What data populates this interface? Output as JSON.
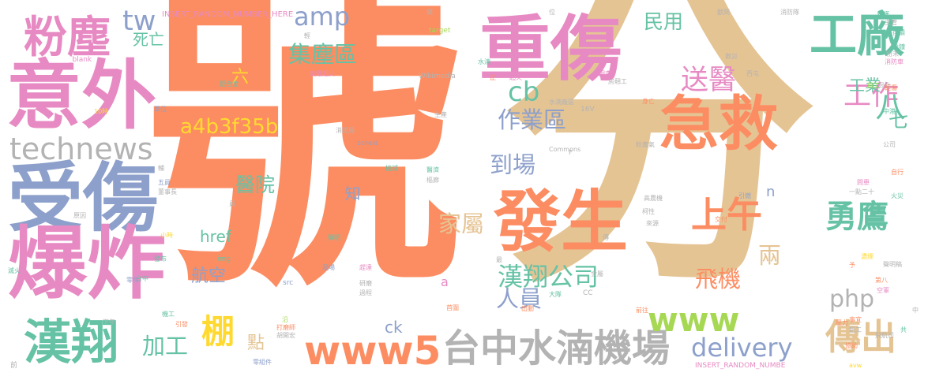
{
  "palette": {
    "orange": "#fc8d62",
    "tan": "#e5c494",
    "pink": "#e78ac3",
    "blue": "#8da0cb",
    "green": "#66c2a5",
    "lime": "#a6d854",
    "yellow": "#ffd92f",
    "gray": "#b3b3b3"
  },
  "words": [
    {
      "text": "號",
      "color": "orange"
    },
    {
      "text": "分",
      "color": "tan"
    },
    {
      "text": "重傷",
      "color": "pink"
    },
    {
      "text": "意外",
      "color": "pink"
    },
    {
      "text": "受傷",
      "color": "blue"
    },
    {
      "text": "爆炸",
      "color": "pink"
    },
    {
      "text": "發生",
      "color": "orange"
    },
    {
      "text": "急救",
      "color": "orange"
    },
    {
      "text": "工廠",
      "color": "green"
    },
    {
      "text": "粉塵",
      "color": "pink"
    },
    {
      "text": "technews",
      "color": "gray"
    },
    {
      "text": "台中水湳機場",
      "color": "gray"
    },
    {
      "text": "漢翔",
      "color": "green"
    },
    {
      "text": "www5",
      "color": "orange"
    },
    {
      "text": "傳出",
      "color": "tan"
    },
    {
      "text": "delivery",
      "color": "blue"
    },
    {
      "text": "漢翔公司",
      "color": "green"
    },
    {
      "text": "上午",
      "color": "orange"
    },
    {
      "text": "勇鷹",
      "color": "green"
    },
    {
      "text": "工作",
      "color": "pink"
    },
    {
      "text": "送醫",
      "color": "pink"
    },
    {
      "text": "amp",
      "color": "blue"
    },
    {
      "text": "tw",
      "color": "blue"
    },
    {
      "text": "cb",
      "color": "green"
    },
    {
      "text": "www",
      "color": "lime"
    },
    {
      "text": "php",
      "color": "gray"
    },
    {
      "text": "集塵區",
      "color": "green"
    },
    {
      "text": "作業區",
      "color": "blue"
    },
    {
      "text": "到場",
      "color": "blue"
    },
    {
      "text": "家屬",
      "color": "tan"
    },
    {
      "text": "飛機",
      "color": "orange"
    },
    {
      "text": "人員",
      "color": "blue"
    },
    {
      "text": "兩",
      "color": "tan"
    },
    {
      "text": "八",
      "color": "green"
    },
    {
      "text": "棚",
      "color": "yellow"
    },
    {
      "text": "加工",
      "color": "green"
    },
    {
      "text": "工業",
      "color": "green"
    },
    {
      "text": "民用",
      "color": "green"
    },
    {
      "text": "七",
      "color": "green"
    },
    {
      "text": "a4b3f35b",
      "color": "yellow"
    },
    {
      "text": "醫院",
      "color": "green"
    },
    {
      "text": "航空",
      "color": "blue"
    },
    {
      "text": "href",
      "color": "green"
    },
    {
      "text": "ck",
      "color": "blue"
    },
    {
      "text": "點",
      "color": "tan"
    },
    {
      "text": "死亡",
      "color": "green"
    },
    {
      "text": "六",
      "color": "yellow"
    },
    {
      "text": "知",
      "color": "blue"
    },
    {
      "text": "a",
      "color": "pink"
    },
    {
      "text": "n",
      "color": "blue"
    },
    {
      "text": "INSERT_RANDOM_NUMBER_HERE",
      "color": "pink"
    },
    {
      "text": "INSERT_RANDOM_NUMBE",
      "color": "pink"
    },
    {
      "text": "target",
      "color": "lime"
    },
    {
      "text": "_blank",
      "color": "pink"
    },
    {
      "text": "Wikimedia",
      "color": "gray"
    },
    {
      "text": "Commons",
      "color": "gray"
    },
    {
      "text": "zoneid",
      "color": "blue"
    },
    {
      "text": "img",
      "color": "green"
    },
    {
      "text": "src",
      "color": "blue"
    },
    {
      "text": "16V",
      "color": "gray"
    },
    {
      "text": "CC",
      "color": "gray"
    },
    {
      "text": "檢調",
      "color": "pink"
    },
    {
      "text": "鋁合金",
      "color": "green"
    },
    {
      "text": "氣爆起火",
      "color": "pink"
    },
    {
      "text": "詳細",
      "color": "orange"
    },
    {
      "text": "水湳",
      "color": "green"
    },
    {
      "text": "正",
      "color": "orange"
    },
    {
      "text": "起火",
      "color": "pink"
    },
    {
      "text": "水湳廠區",
      "color": "gray"
    },
    {
      "text": "調查",
      "color": "pink"
    },
    {
      "text": "房翹工",
      "color": "gray"
    },
    {
      "text": "身亡",
      "color": "orange"
    },
    {
      "text": "救災",
      "color": "gray"
    },
    {
      "text": "西屯",
      "color": "gray"
    },
    {
      "text": "位",
      "color": "gray"
    },
    {
      "text": "獸岡",
      "color": "gray"
    },
    {
      "text": "消防隊",
      "color": "gray"
    },
    {
      "text": "救護",
      "color": "green"
    },
    {
      "text": "主管",
      "color": "gray"
    },
    {
      "text": "後續",
      "color": "green"
    },
    {
      "text": "分鐘",
      "color": "green"
    },
    {
      "text": "粉末",
      "color": "gray"
    },
    {
      "text": "消防車",
      "color": "pink"
    },
    {
      "text": "員工",
      "color": "lime"
    },
    {
      "text": "局針",
      "color": "gray"
    },
    {
      "text": "突",
      "color": "gray"
    },
    {
      "text": "輕",
      "color": "gray"
    },
    {
      "text": "消防局",
      "color": "gray"
    },
    {
      "text": "生產",
      "color": "gray"
    },
    {
      "text": "接滅",
      "color": "green"
    },
    {
      "text": "醫濟",
      "color": "green"
    },
    {
      "text": "樞廊",
      "color": "gray"
    },
    {
      "text": "粉塵氣",
      "color": "gray"
    },
    {
      "text": "問患",
      "color": "pink"
    },
    {
      "text": "中港",
      "color": "green"
    },
    {
      "text": "公司",
      "color": "gray"
    },
    {
      "text": "自行",
      "color": "orange"
    },
    {
      "text": "火災",
      "color": "green"
    },
    {
      "text": "一點二十",
      "color": "gray"
    },
    {
      "text": "引燃",
      "color": "blue"
    },
    {
      "text": "高農機",
      "color": "gray"
    },
    {
      "text": "柯性",
      "color": "gray"
    },
    {
      "text": "來源",
      "color": "gray"
    },
    {
      "text": "交付",
      "color": "orange"
    },
    {
      "text": "聲明",
      "color": "green"
    },
    {
      "text": "現場",
      "color": "blue"
    },
    {
      "text": "趕達",
      "color": "pink"
    },
    {
      "text": "研磨",
      "color": "gray"
    },
    {
      "text": "過程",
      "color": "gray"
    },
    {
      "text": "大隊",
      "color": "green"
    },
    {
      "text": "首圍",
      "color": "orange"
    },
    {
      "text": "出動",
      "color": "orange"
    },
    {
      "text": "打磨師",
      "color": "orange"
    },
    {
      "text": "胡開宏",
      "color": "gray"
    },
    {
      "text": "零組件",
      "color": "blue"
    },
    {
      "text": "機工",
      "color": "green"
    },
    {
      "text": "引發",
      "color": "orange"
    },
    {
      "text": "下午",
      "color": "gray"
    },
    {
      "text": "滅火",
      "color": "green"
    },
    {
      "text": "發布",
      "color": "green"
    },
    {
      "text": "台中",
      "color": "green"
    },
    {
      "text": "零件",
      "color": "blue"
    },
    {
      "text": "小時",
      "color": "yellow"
    },
    {
      "text": "原因",
      "color": "gray"
    },
    {
      "text": "董事長",
      "color": "gray"
    },
    {
      "text": "五員",
      "color": "blue"
    },
    {
      "text": "單位",
      "color": "blue"
    },
    {
      "text": "10時",
      "color": "yellow"
    },
    {
      "text": "金屬",
      "color": "gray"
    },
    {
      "text": "前往",
      "color": "orange"
    },
    {
      "text": "第八",
      "color": "orange"
    },
    {
      "text": "空軍",
      "color": "pink"
    },
    {
      "text": "聲明稿",
      "color": "gray"
    },
    {
      "text": "濃煙",
      "color": "yellow"
    },
    {
      "text": "予",
      "color": "orange"
    },
    {
      "text": "事宜",
      "color": "orange"
    },
    {
      "text": "鋁工",
      "color": "gray"
    },
    {
      "text": "飛航司",
      "color": "gray"
    },
    {
      "text": "壓力",
      "color": "orange"
    },
    {
      "text": "協助",
      "color": "orange"
    },
    {
      "text": "avw",
      "color": "yellow"
    },
    {
      "text": "共",
      "color": "green"
    },
    {
      "text": "中",
      "color": "gray"
    },
    {
      "text": "最",
      "color": "gray"
    },
    {
      "text": "員",
      "color": "gray"
    },
    {
      "text": "F",
      "color": "gray"
    },
    {
      "text": "輔",
      "color": "gray"
    },
    {
      "text": "沿",
      "color": "lime"
    },
    {
      "text": "傳",
      "color": "gray"
    },
    {
      "text": "前",
      "color": "gray"
    },
    {
      "text": "輕傷",
      "color": "orange"
    }
  ]
}
